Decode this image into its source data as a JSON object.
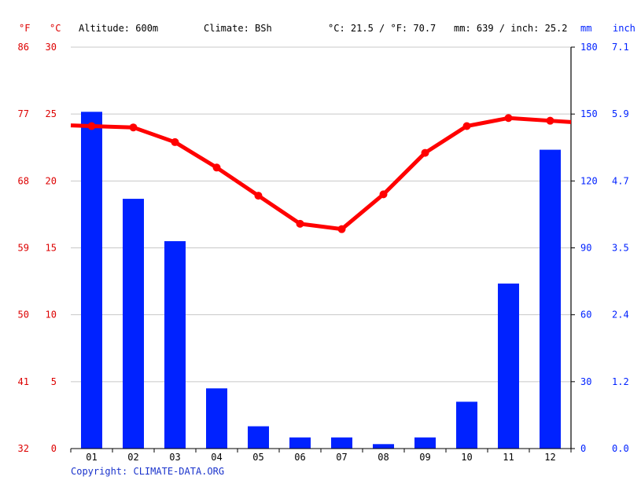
{
  "header": {
    "f_unit": "°F",
    "c_unit": "°C",
    "altitude": "Altitude: 600m",
    "climate": "Climate: BSh",
    "avg_temp": "°C: 21.5 / °F: 70.7",
    "precip_total": "mm: 639 / inch: 25.2",
    "mm_unit": "mm",
    "inch_unit": "inch"
  },
  "footer": {
    "copyright": "Copyright: CLIMATE-DATA.ORG"
  },
  "colors": {
    "temperature": "#ff0000",
    "precipitation": "#0022ff",
    "temp_axis_text": "#dd0000",
    "precip_axis_text": "#0022ff",
    "grid": "#c8c8c8",
    "text": "#000000",
    "copyright": "#1a33cc"
  },
  "chart_data": {
    "type": "bar+line",
    "categories": [
      "01",
      "02",
      "03",
      "04",
      "05",
      "06",
      "07",
      "08",
      "09",
      "10",
      "11",
      "12"
    ],
    "series": [
      {
        "kind": "bar",
        "unit": "mm",
        "values": [
          151,
          112,
          93,
          27,
          10,
          5,
          5,
          2,
          5,
          21,
          74,
          134
        ]
      },
      {
        "kind": "line",
        "unit": "°C",
        "values": [
          24.1,
          24.0,
          22.9,
          21.0,
          18.9,
          16.8,
          16.4,
          19.0,
          22.1,
          24.1,
          24.7,
          24.5
        ]
      }
    ],
    "temp_axis": {
      "range_c": [
        0,
        30
      ],
      "ticks_c": [
        "0",
        "5",
        "10",
        "15",
        "20",
        "25",
        "30"
      ],
      "ticks_f": [
        "32",
        "41",
        "50",
        "59",
        "68",
        "77",
        "86"
      ]
    },
    "precip_axis": {
      "range_mm": [
        0,
        180
      ],
      "ticks_mm": [
        "0",
        "30",
        "60",
        "90",
        "120",
        "150",
        "180"
      ],
      "ticks_inch": [
        "0.0",
        "1.2",
        "2.4",
        "3.5",
        "4.7",
        "5.9",
        "7.1"
      ]
    },
    "grid": true
  }
}
